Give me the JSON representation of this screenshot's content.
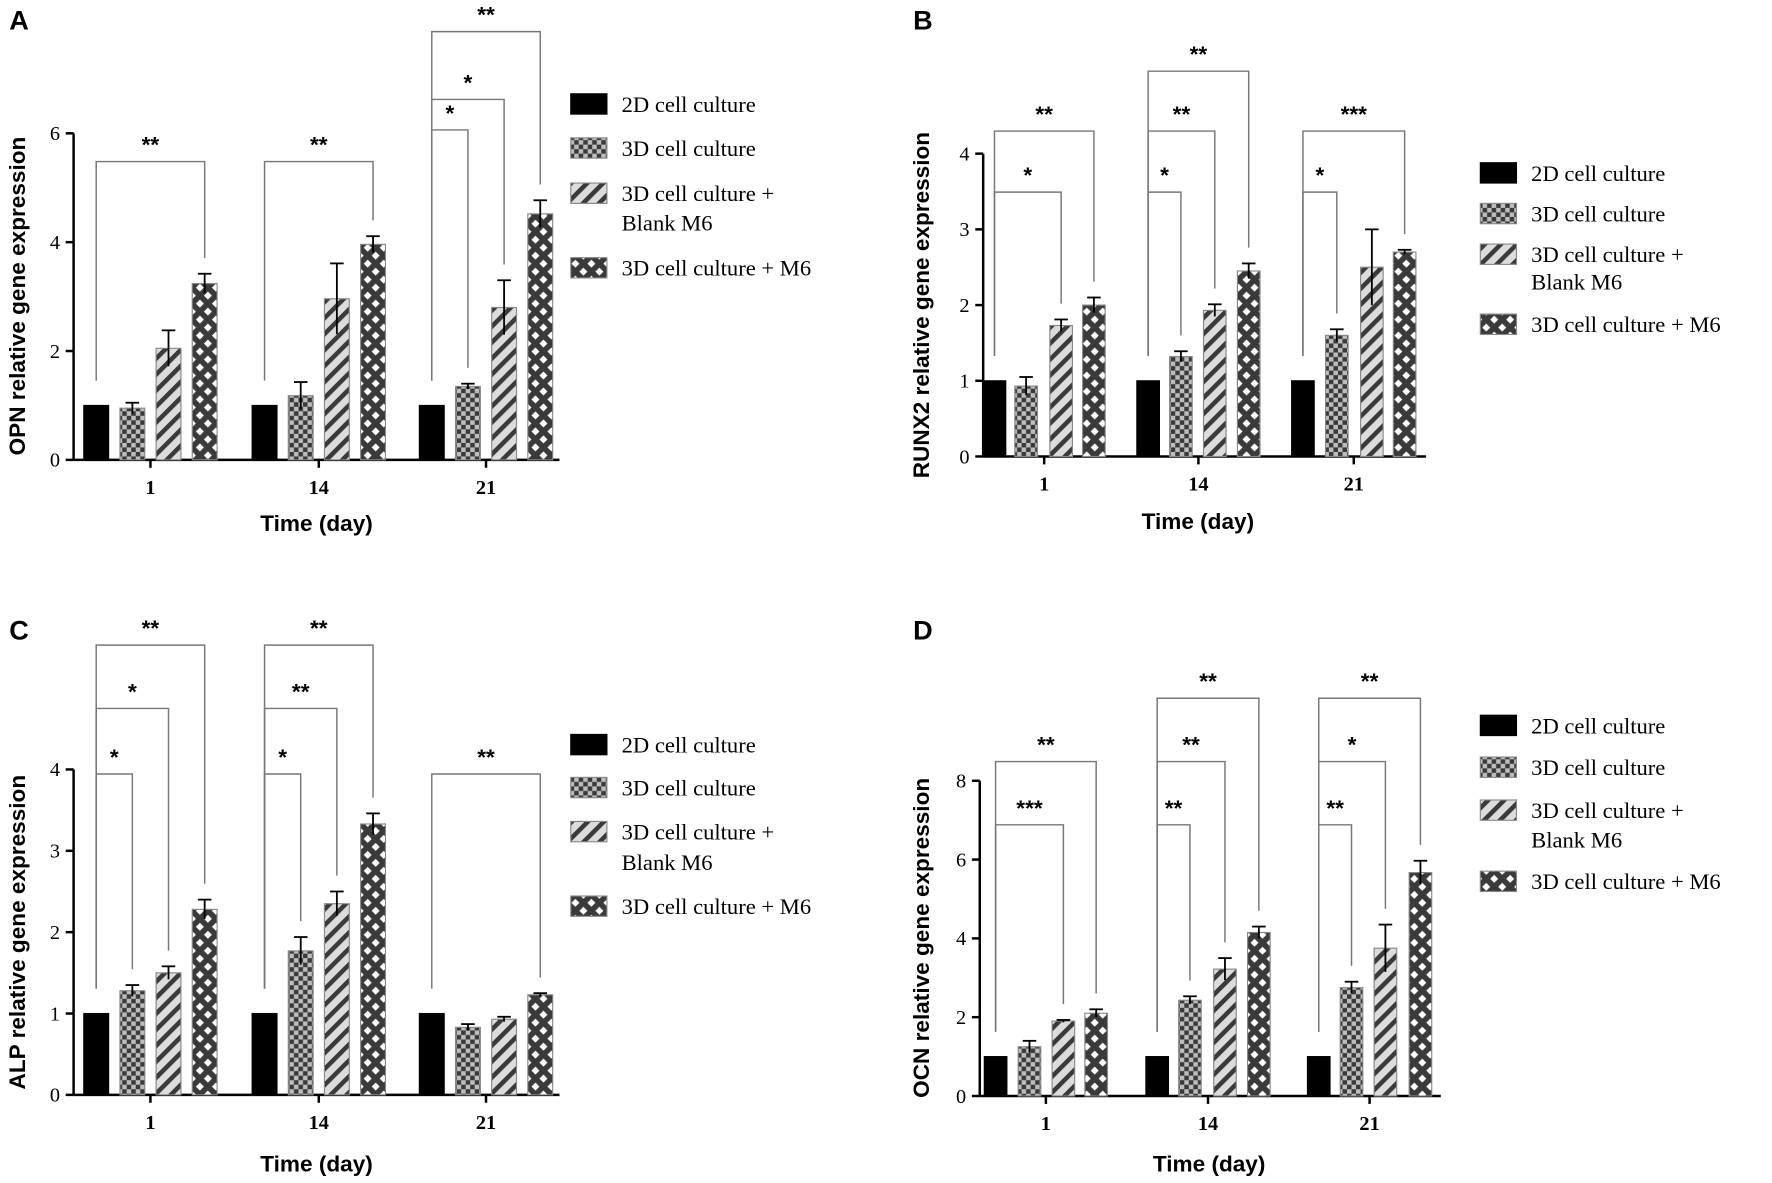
{
  "chart_data": [
    {
      "panel": "A",
      "type": "bar",
      "title": "",
      "xlabel": "Time (day)",
      "ylabel": "OPN relative gene expression",
      "ylim": [
        0,
        6
      ],
      "yticks": [
        0,
        2,
        4,
        6
      ],
      "categories": [
        "1",
        "14",
        "21"
      ],
      "series": [
        {
          "name": "2D cell culture",
          "values": [
            1,
            1,
            1
          ],
          "errors": [
            0,
            0,
            0
          ]
        },
        {
          "name": "3D cell culture",
          "values": [
            0.95,
            1.18,
            1.35
          ],
          "errors": [
            0.1,
            0.25,
            0.05
          ]
        },
        {
          "name": "3D cell culture + Blank M6",
          "values": [
            2.05,
            2.96,
            2.8
          ],
          "errors": [
            0.33,
            0.65,
            0.5
          ]
        },
        {
          "name": "3D cell culture + M6",
          "values": [
            3.24,
            3.96,
            4.52
          ],
          "errors": [
            0.18,
            0.15,
            0.25
          ]
        }
      ],
      "significance": [
        [
          {
            "to": 3,
            "label": "**",
            "tier": 1
          }
        ],
        [
          {
            "to": 3,
            "label": "**",
            "tier": 1
          }
        ],
        [
          {
            "to": 1,
            "label": "*",
            "tier": 2
          },
          {
            "to": 2,
            "label": "*",
            "tier": 3
          },
          {
            "to": 3,
            "label": "**",
            "tier": 4
          }
        ]
      ],
      "legend": [
        "2D cell culture",
        "3D cell culture",
        "3D cell culture +",
        "Blank M6",
        "3D cell culture + M6"
      ]
    },
    {
      "panel": "B",
      "type": "bar",
      "title": "",
      "xlabel": "Time (day)",
      "ylabel": "RUNX2 relative gene expression",
      "ylim": [
        0,
        4
      ],
      "yticks": [
        0,
        1,
        2,
        3,
        4
      ],
      "categories": [
        "1",
        "14",
        "21"
      ],
      "series": [
        {
          "name": "2D cell culture",
          "values": [
            1,
            1,
            1
          ],
          "errors": [
            0,
            0,
            0
          ]
        },
        {
          "name": "3D cell culture",
          "values": [
            0.93,
            1.32,
            1.6
          ],
          "errors": [
            0.12,
            0.07,
            0.08
          ]
        },
        {
          "name": "3D cell culture + Blank M6",
          "values": [
            1.73,
            1.93,
            2.5
          ],
          "errors": [
            0.08,
            0.08,
            0.5
          ]
        },
        {
          "name": "3D cell culture + M6",
          "values": [
            2.0,
            2.45,
            2.7
          ],
          "errors": [
            0.1,
            0.1,
            0.03
          ]
        }
      ],
      "significance": [
        [
          {
            "to": 2,
            "label": "*",
            "tier": 1
          },
          {
            "to": 3,
            "label": "**",
            "tier": 2
          }
        ],
        [
          {
            "to": 1,
            "label": "*",
            "tier": 1
          },
          {
            "to": 2,
            "label": "**",
            "tier": 2
          },
          {
            "to": 3,
            "label": "**",
            "tier": 3
          }
        ],
        [
          {
            "to": 1,
            "label": "*",
            "tier": 1
          },
          {
            "to": 3,
            "label": "***",
            "tier": 2
          }
        ]
      ],
      "legend": [
        "2D cell culture",
        "3D cell culture",
        "3D cell culture +",
        "Blank M6",
        "3D cell culture + M6"
      ]
    },
    {
      "panel": "C",
      "type": "bar",
      "title": "",
      "xlabel": "Time (day)",
      "ylabel": "ALP relative gene expression",
      "ylim": [
        0,
        4
      ],
      "yticks": [
        0,
        1,
        2,
        3,
        4
      ],
      "categories": [
        "1",
        "14",
        "21"
      ],
      "series": [
        {
          "name": "2D cell culture",
          "values": [
            1,
            1,
            1
          ],
          "errors": [
            0,
            0,
            0
          ]
        },
        {
          "name": "3D cell culture",
          "values": [
            1.28,
            1.77,
            0.83
          ],
          "errors": [
            0.07,
            0.17,
            0.04
          ]
        },
        {
          "name": "3D cell culture + Blank M6",
          "values": [
            1.5,
            2.35,
            0.93
          ],
          "errors": [
            0.08,
            0.15,
            0.03
          ]
        },
        {
          "name": "3D cell culture + M6",
          "values": [
            2.28,
            3.33,
            1.23
          ],
          "errors": [
            0.12,
            0.13,
            0.02
          ]
        }
      ],
      "significance": [
        [
          {
            "to": 1,
            "label": "*",
            "tier": 1
          },
          {
            "to": 2,
            "label": "*",
            "tier": 2
          },
          {
            "to": 3,
            "label": "**",
            "tier": 3
          }
        ],
        [
          {
            "to": 1,
            "label": "*",
            "tier": 1
          },
          {
            "to": 2,
            "label": "**",
            "tier": 2
          },
          {
            "to": 3,
            "label": "**",
            "tier": 3
          }
        ],
        [
          {
            "to": 3,
            "label": "**",
            "tier": 1
          }
        ]
      ],
      "legend": [
        "2D cell culture",
        "3D cell culture",
        "3D cell culture +",
        "Blank M6",
        "3D cell culture + M6"
      ]
    },
    {
      "panel": "D",
      "type": "bar",
      "title": "",
      "xlabel": "Time (day)",
      "ylabel": "OCN relative gene expression",
      "ylim": [
        0,
        8
      ],
      "yticks": [
        0,
        2,
        4,
        6,
        8
      ],
      "categories": [
        "1",
        "14",
        "21"
      ],
      "series": [
        {
          "name": "2D cell culture",
          "values": [
            1,
            1,
            1
          ],
          "errors": [
            0,
            0,
            0
          ]
        },
        {
          "name": "3D cell culture",
          "values": [
            1.25,
            2.43,
            2.75
          ],
          "errors": [
            0.15,
            0.1,
            0.15
          ]
        },
        {
          "name": "3D cell culture + Blank M6",
          "values": [
            1.9,
            3.22,
            3.75
          ],
          "errors": [
            0.03,
            0.28,
            0.6
          ]
        },
        {
          "name": "3D cell culture + M6",
          "values": [
            2.1,
            4.15,
            5.67
          ],
          "errors": [
            0.1,
            0.15,
            0.3
          ]
        }
      ],
      "significance": [
        [
          {
            "to": 2,
            "label": "***",
            "tier": 1
          },
          {
            "to": 3,
            "label": "**",
            "tier": 2
          }
        ],
        [
          {
            "to": 1,
            "label": "**",
            "tier": 1
          },
          {
            "to": 2,
            "label": "**",
            "tier": 2
          },
          {
            "to": 3,
            "label": "**",
            "tier": 3
          }
        ],
        [
          {
            "to": 1,
            "label": "**",
            "tier": 1
          },
          {
            "to": 2,
            "label": "*",
            "tier": 2
          },
          {
            "to": 3,
            "label": "**",
            "tier": 3
          }
        ]
      ],
      "legend": [
        "2D cell culture",
        "3D cell culture",
        "3D cell culture +",
        "Blank M6",
        "3D cell culture + M6"
      ]
    }
  ]
}
